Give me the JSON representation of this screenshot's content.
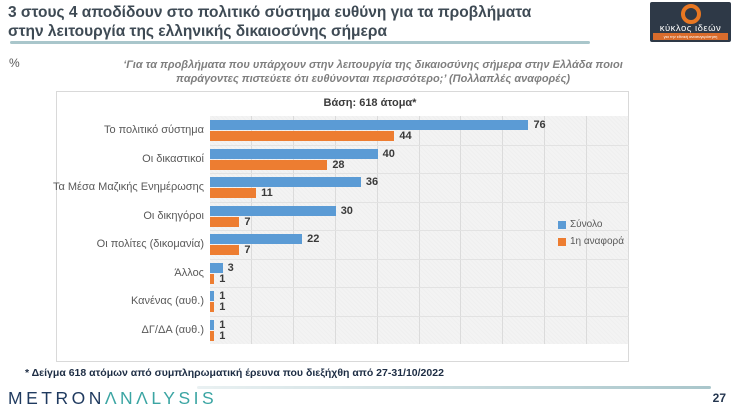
{
  "slide": {
    "title_line1": "3 στους 4 αποδίδουν στο πολιτικό σύστημα ευθύνη για τα προβλήματα",
    "title_line2": "στην λειτουργία της ελληνικής δικαιοσύνης σήμερα",
    "percent_label": "%",
    "footnote": "*  Δείγμα 618 ατόμων από συμπληρωματική έρευνα που διεξήχθη από 27-31/10/2022",
    "page_number": "27"
  },
  "logo": {
    "name": "κύκλος ιδεών",
    "tagline": "για την εθνική ανασυγκρότηση"
  },
  "brand": {
    "part1": "METRON",
    "part2": "ΛNΛLYSIS"
  },
  "colors": {
    "bar_blue": "#5B9BD5",
    "bar_orange": "#ED7D31",
    "accent_teal": "#A9C6CB",
    "title_text": "#3E4A54",
    "logo_bg": "#2E3947",
    "logo_orange": "#E87722",
    "brand_navy": "#1F3A5F",
    "brand_teal": "#3BA5A3"
  },
  "chart_data": {
    "type": "bar",
    "orientation": "horizontal",
    "question": "‘Για τα προβλήματα που υπάρχουν στην λειτουργία της δικαιοσύνης σήμερα στην Ελλάδα ποιοι παράγοντες πιστεύετε ότι ευθύνονται περισσότερο;’ (Πολλαπλές αναφορές)",
    "base_label": "Βάση: 618 άτομα*",
    "categories": [
      "Το πολιτικό σύστημα",
      "Οι δικαστικοί",
      "Τα Μέσα Μαζικής Ενημέρωσης",
      "Οι δικηγόροι",
      "Οι πολίτες (δικομανία)",
      "Άλλος",
      "Κανένας (αυθ.)",
      "ΔΓ/ΔΑ (αυθ.)"
    ],
    "series": [
      {
        "name": "Σύνολο",
        "color": "#5B9BD5",
        "values": [
          76,
          40,
          36,
          30,
          22,
          3,
          1,
          1
        ]
      },
      {
        "name": "1η αναφορά",
        "color": "#ED7D31",
        "values": [
          44,
          28,
          11,
          7,
          7,
          1,
          1,
          1
        ]
      }
    ],
    "xlim": [
      0,
      100
    ],
    "gridline_step": 10,
    "grid": true,
    "legend_position": "inside-right"
  }
}
